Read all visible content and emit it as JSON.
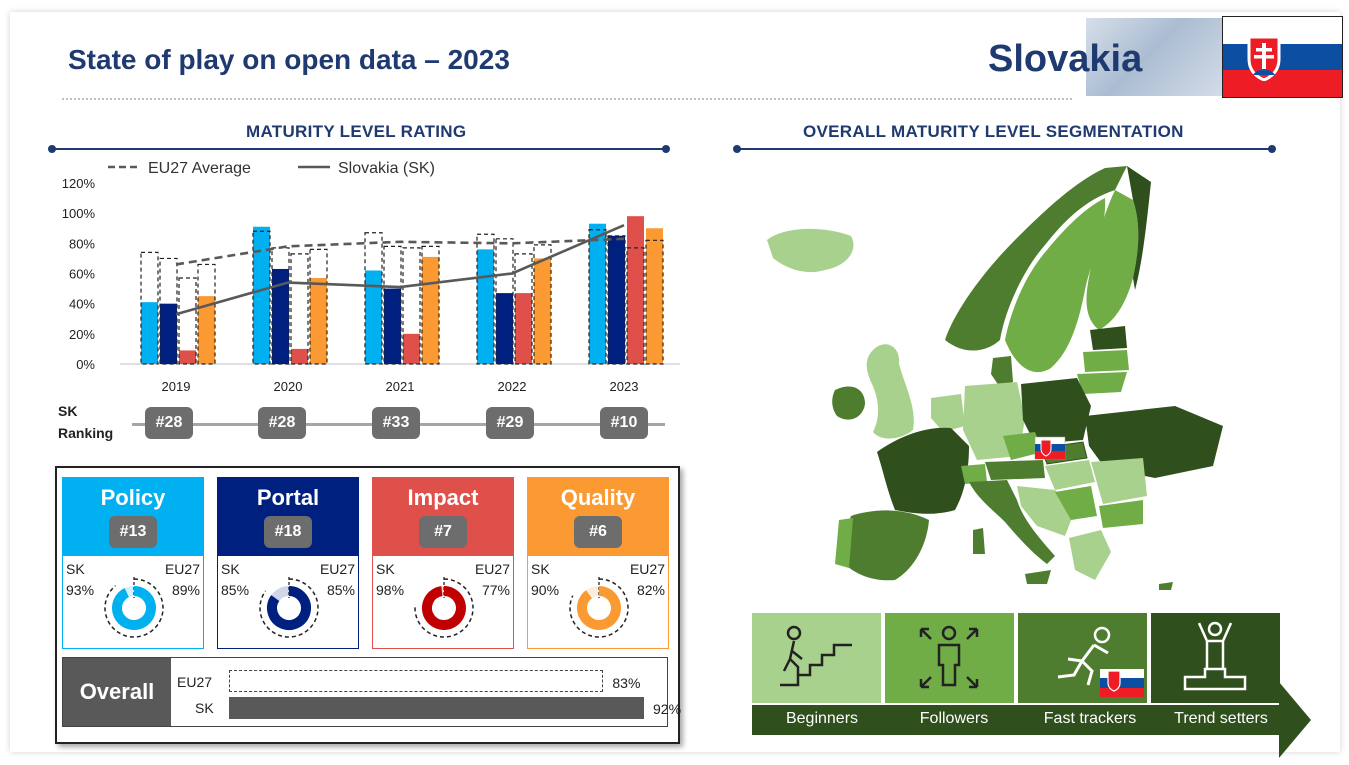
{
  "header": {
    "title": "State of play on open data – 2023",
    "country": "Slovakia"
  },
  "sections": {
    "left_title": "MATURITY LEVEL RATING",
    "right_title": "OVERALL MATURITY LEVEL SEGMENTATION"
  },
  "colors": {
    "policy": "#00b0f0",
    "portal": "#002080",
    "impact": "#e0504a",
    "quality": "#fb9a33",
    "navy": "#1f3a70",
    "green_beginners": "#a9d18e",
    "green_followers": "#70ad47",
    "green_fast": "#4f7d2f",
    "green_trend": "#2f4f1c"
  },
  "chart_data": {
    "type": "bar",
    "categories": [
      "2019",
      "2020",
      "2021",
      "2022",
      "2023"
    ],
    "ylim": [
      0,
      120
    ],
    "yticks": [
      "0%",
      "20%",
      "40%",
      "60%",
      "80%",
      "100%",
      "120%"
    ],
    "xlabel": "",
    "ylabel": "",
    "legend": [
      {
        "name": "EU27 Average",
        "style": "dashed"
      },
      {
        "name": "Slovakia (SK)",
        "style": "solid"
      }
    ],
    "series": [
      {
        "key": "policy",
        "sk": [
          41,
          91,
          62,
          76,
          93
        ],
        "eu27": [
          74,
          88,
          87,
          86,
          89
        ]
      },
      {
        "key": "portal",
        "sk": [
          40,
          63,
          50,
          47,
          85
        ],
        "eu27": [
          70,
          77,
          78,
          83,
          85
        ]
      },
      {
        "key": "impact",
        "sk": [
          9,
          10,
          20,
          47,
          98
        ],
        "eu27": [
          57,
          73,
          77,
          73,
          77
        ]
      },
      {
        "key": "quality",
        "sk": [
          45,
          57,
          71,
          70,
          90
        ],
        "eu27": [
          66,
          76,
          78,
          79,
          82
        ]
      }
    ],
    "line_series": [
      {
        "name": "EU27 Average",
        "values": [
          66,
          78,
          81,
          80,
          83
        ]
      },
      {
        "name": "Slovakia (SK)",
        "values": [
          33,
          54,
          51,
          60,
          92
        ]
      }
    ]
  },
  "ranking": {
    "label_line1": "SK",
    "label_line2": "Ranking",
    "values": [
      "#28",
      "#28",
      "#33",
      "#29",
      "#10"
    ]
  },
  "dimensions": [
    {
      "name": "Policy",
      "rank": "#13",
      "sk_label": "SK",
      "sk_value": "93%",
      "eu_label": "EU27",
      "eu_value": "89%",
      "sk_pct": 93,
      "eu_pct": 89
    },
    {
      "name": "Portal",
      "rank": "#18",
      "sk_label": "SK",
      "sk_value": "85%",
      "eu_label": "EU27",
      "eu_value": "85%",
      "sk_pct": 85,
      "eu_pct": 85
    },
    {
      "name": "Impact",
      "rank": "#7",
      "sk_label": "SK",
      "sk_value": "98%",
      "eu_label": "EU27",
      "eu_value": "77%",
      "sk_pct": 98,
      "eu_pct": 77
    },
    {
      "name": "Quality",
      "rank": "#6",
      "sk_label": "SK",
      "sk_value": "90%",
      "eu_label": "EU27",
      "eu_value": "82%",
      "sk_pct": 90,
      "eu_pct": 82
    }
  ],
  "overall": {
    "label": "Overall",
    "rows": [
      {
        "name": "EU27",
        "value": "83%",
        "pct": 83
      },
      {
        "name": "SK",
        "value": "92%",
        "pct": 92
      }
    ]
  },
  "segmentation": [
    {
      "label": "Beginners",
      "icon": "stairs-climber-icon"
    },
    {
      "label": "Followers",
      "icon": "person-arrows-icon"
    },
    {
      "label": "Fast trackers",
      "icon": "runner-icon"
    },
    {
      "label": "Trend setters",
      "icon": "podium-winner-icon"
    }
  ]
}
